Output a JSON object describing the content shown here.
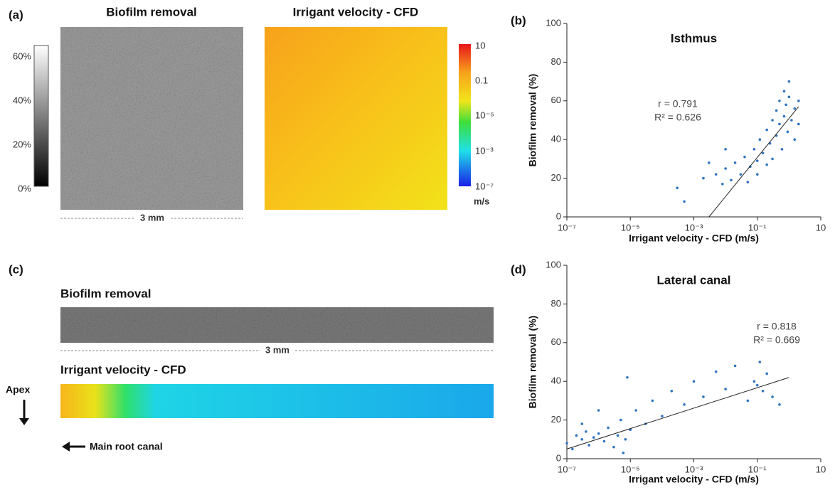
{
  "chart_data": [
    {
      "type": "image",
      "panel_label": "(a)",
      "titles": [
        "Biofilm removal",
        "Irrigant velocity - CFD"
      ],
      "greyscale_labels": [
        "60%",
        "40%",
        "20%",
        "0%"
      ],
      "velocity_labels": [
        "10",
        "0.1",
        "10⁻⁵",
        "10⁻³",
        "10⁻⁷"
      ],
      "velocity_unit": "m/s",
      "scale_label": "3 mm"
    },
    {
      "type": "scatter",
      "panel_label": "(b)",
      "title": "Isthmus",
      "xlabel": "Irrigant velocity - CFD (m/s)",
      "ylabel": "Biofilm removal (%)",
      "annotations": [
        "r = 0.791",
        "R² = 0.626"
      ],
      "color": "#2f74c0",
      "xscale": "log",
      "xlim": [
        1e-07,
        10
      ],
      "xticks": [
        {
          "value": 1e-07,
          "label": "10⁻⁷"
        },
        {
          "value": 1e-05,
          "label": "10⁻⁵"
        },
        {
          "value": 0.001,
          "label": "10⁻³"
        },
        {
          "value": 0.1,
          "label": "10⁻¹"
        },
        10
      ],
      "ylim": [
        0,
        100
      ],
      "yticks": [
        0,
        20,
        40,
        60,
        80,
        100
      ],
      "x": [
        0.0003,
        0.0005,
        0.002,
        0.005,
        0.008,
        0.01,
        0.015,
        0.02,
        0.03,
        0.04,
        0.05,
        0.06,
        0.08,
        0.1,
        0.1,
        0.12,
        0.15,
        0.2,
        0.2,
        0.25,
        0.3,
        0.3,
        0.4,
        0.4,
        0.5,
        0.5,
        0.6,
        0.7,
        0.7,
        0.8,
        0.9,
        1,
        1,
        1.2,
        1.5,
        1.5,
        2,
        2,
        0.01,
        0.003
      ],
      "values": [
        15,
        8,
        20,
        22,
        17,
        25,
        19,
        28,
        22,
        31,
        18,
        26,
        35,
        29,
        22,
        40,
        33,
        27,
        45,
        38,
        50,
        30,
        55,
        42,
        60,
        48,
        35,
        65,
        52,
        58,
        44,
        62,
        70,
        50,
        56,
        40,
        48,
        60,
        35,
        28
      ],
      "fit_x": [
        0.003,
        2
      ],
      "fit_y": [
        0,
        57
      ]
    },
    {
      "type": "image",
      "panel_label": "(c)",
      "titles": [
        "Biofilm removal",
        "Irrigant velocity - CFD"
      ],
      "scale_label": "3 mm",
      "apex_label": "Apex",
      "canal_label": "Main root canal"
    },
    {
      "type": "scatter",
      "panel_label": "(d)",
      "title": "Lateral canal",
      "xlabel": "Irrigant velocity - CFD (m/s)",
      "ylabel": "Biofilm removal (%)",
      "annotations": [
        "r = 0.818",
        "R² = 0.669"
      ],
      "color": "#2f74c0",
      "xscale": "log",
      "xlim": [
        1e-07,
        10
      ],
      "xticks": [
        {
          "value": 1e-07,
          "label": "10⁻⁷"
        },
        {
          "value": 1e-05,
          "label": "10⁻⁵"
        },
        {
          "value": 0.001,
          "label": "10⁻³"
        },
        {
          "value": 0.1,
          "label": "10⁻¹"
        },
        10
      ],
      "ylim": [
        0,
        100
      ],
      "yticks": [
        0,
        20,
        40,
        60,
        80,
        100
      ],
      "x": [
        1e-07,
        1.5e-07,
        2e-07,
        3e-07,
        4e-07,
        5e-07,
        7e-07,
        1e-06,
        1.5e-06,
        2e-06,
        3e-06,
        4e-06,
        5e-06,
        6e-06,
        7e-06,
        8e-06,
        1e-05,
        1.5e-05,
        3e-05,
        5e-05,
        0.0001,
        0.0002,
        0.0005,
        0.001,
        0.002,
        0.005,
        0.01,
        0.02,
        0.05,
        0.08,
        0.1,
        0.12,
        0.15,
        0.2,
        0.3,
        0.5,
        1e-06,
        3e-07
      ],
      "values": [
        8,
        5,
        12,
        10,
        14,
        7,
        11,
        13,
        9,
        16,
        6,
        12,
        20,
        3,
        10,
        42,
        15,
        25,
        18,
        30,
        22,
        35,
        28,
        40,
        32,
        45,
        36,
        48,
        30,
        40,
        38,
        50,
        35,
        44,
        32,
        28,
        25,
        18
      ],
      "fit_x": [
        1e-07,
        1
      ],
      "fit_y": [
        5,
        42
      ]
    }
  ]
}
